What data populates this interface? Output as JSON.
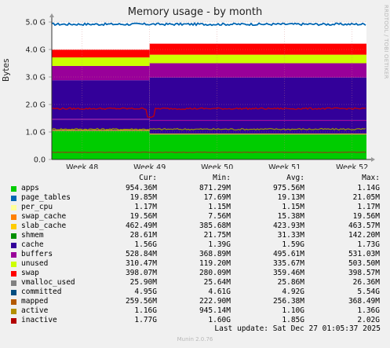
{
  "title": "Memory usage - by month",
  "side_text": "RRDTOOL / TOBI OETIKER",
  "footer": "Munin 2.0.76",
  "last_update": "Last update: Sat Dec 27 01:05:37 2025",
  "headers": {
    "cur": "Cur:",
    "min": "Min:",
    "avg": "Avg:",
    "max": "Max:"
  },
  "chart_data": {
    "type": "area",
    "ylabel": "Bytes",
    "yticks": [
      "0.0",
      "1.0 G",
      "2.0 G",
      "3.0 G",
      "4.0 G",
      "5.0 G"
    ],
    "ylim": [
      0,
      5.0
    ],
    "xticks": [
      "Week 48",
      "Week 49",
      "Week 50",
      "Week 51",
      "Week 52"
    ],
    "grid": true,
    "stack_before_change": [
      {
        "name": "apps",
        "color": "#00cc00",
        "value": 1.03
      },
      {
        "name": "page_tables",
        "color": "#0066b3",
        "value": 0.02
      },
      {
        "name": "per_cpu",
        "color": "#ff8000",
        "value": 0.001
      },
      {
        "name": "swap_cache",
        "color": "#ffcc00",
        "value": 0.02
      },
      {
        "name": "slab_cache",
        "color": "#330099",
        "value": 0.38
      },
      {
        "name": "shmem",
        "color": "#990099",
        "value": 0.03
      },
      {
        "name": "cache",
        "color": "#330099",
        "value": 1.4
      },
      {
        "name": "buffers",
        "color": "#990099",
        "value": 0.52
      },
      {
        "name": "unused",
        "color": "#ccff00",
        "value": 0.31
      },
      {
        "name": "swap",
        "color": "#ff0000",
        "value": 0.28
      }
    ],
    "stack_after_change": [
      {
        "name": "apps",
        "color": "#00cc00",
        "value": 0.9
      },
      {
        "name": "page_tables",
        "color": "#0066b3",
        "value": 0.02
      },
      {
        "name": "per_cpu",
        "color": "#ff8000",
        "value": 0.001
      },
      {
        "name": "swap_cache",
        "color": "#ffcc00",
        "value": 0.02
      },
      {
        "name": "slab_cache",
        "color": "#330099",
        "value": 0.46
      },
      {
        "name": "shmem",
        "color": "#990099",
        "value": 0.03
      },
      {
        "name": "cache",
        "color": "#330099",
        "value": 1.55
      },
      {
        "name": "buffers",
        "color": "#990099",
        "value": 0.52
      },
      {
        "name": "unused",
        "color": "#ccff00",
        "value": 0.31
      },
      {
        "name": "swap",
        "color": "#ff0000",
        "value": 0.4
      }
    ],
    "change_point_week": 1.45,
    "lines": [
      {
        "name": "committed",
        "color": "#0066b3",
        "value": 4.92
      },
      {
        "name": "active",
        "color": "#999900",
        "value": 1.1
      },
      {
        "name": "inactive",
        "color": "#cc0000",
        "value": 1.85
      },
      {
        "name": "mapped",
        "color": "#8b4513",
        "value": 0.26
      }
    ]
  },
  "legend": [
    {
      "name": "apps",
      "color": "#00cc00",
      "cur": "954.36M",
      "min": "871.29M",
      "avg": "975.56M",
      "max": "1.14G"
    },
    {
      "name": "page_tables",
      "color": "#0066b3",
      "cur": "19.85M",
      "min": "17.69M",
      "avg": "19.13M",
      "max": "21.05M"
    },
    {
      "name": "per_cpu",
      "color": "#ffff99",
      "cur": "1.17M",
      "min": "1.15M",
      "avg": "1.15M",
      "max": "1.17M"
    },
    {
      "name": "swap_cache",
      "color": "#ff8000",
      "cur": "19.56M",
      "min": "7.56M",
      "avg": "15.38M",
      "max": "19.56M"
    },
    {
      "name": "slab_cache",
      "color": "#ffcc00",
      "cur": "462.49M",
      "min": "385.68M",
      "avg": "423.93M",
      "max": "463.57M"
    },
    {
      "name": "shmem",
      "color": "#008f00",
      "cur": "28.61M",
      "min": "21.75M",
      "avg": "31.33M",
      "max": "142.20M"
    },
    {
      "name": "cache",
      "color": "#330099",
      "cur": "1.56G",
      "min": "1.39G",
      "avg": "1.59G",
      "max": "1.73G"
    },
    {
      "name": "buffers",
      "color": "#990099",
      "cur": "528.84M",
      "min": "368.89M",
      "avg": "495.61M",
      "max": "531.03M"
    },
    {
      "name": "unused",
      "color": "#ccff00",
      "cur": "310.47M",
      "min": "119.20M",
      "avg": "335.67M",
      "max": "503.50M"
    },
    {
      "name": "swap",
      "color": "#ff0000",
      "cur": "398.07M",
      "min": "280.09M",
      "avg": "359.46M",
      "max": "398.57M"
    },
    {
      "name": "vmalloc_used",
      "color": "#808080",
      "cur": "25.90M",
      "min": "25.64M",
      "avg": "25.86M",
      "max": "26.36M"
    },
    {
      "name": "committed",
      "color": "#004d80",
      "cur": "4.95G",
      "min": "4.61G",
      "avg": "4.92G",
      "max": "5.54G"
    },
    {
      "name": "mapped",
      "color": "#b35900",
      "cur": "259.56M",
      "min": "222.90M",
      "avg": "256.38M",
      "max": "368.49M"
    },
    {
      "name": "active",
      "color": "#b38f00",
      "cur": "1.16G",
      "min": "945.14M",
      "avg": "1.10G",
      "max": "1.36G"
    },
    {
      "name": "inactive",
      "color": "#b30000",
      "cur": "1.77G",
      "min": "1.60G",
      "avg": "1.85G",
      "max": "2.02G"
    }
  ]
}
